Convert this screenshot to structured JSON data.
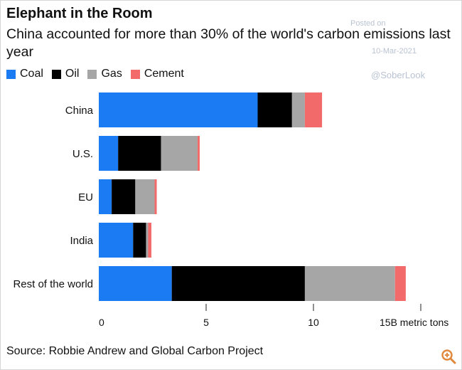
{
  "header": {
    "title": "Elephant in the Room",
    "subtitle": "China accounted for more than 30% of the world's carbon emissions last year"
  },
  "watermark": {
    "posted": "Posted on",
    "date": "10-Mar-2021",
    "handle": "@SoberLook"
  },
  "footer": {
    "source": "Source: Robbie Andrew and Global Carbon Project"
  },
  "icons": {
    "zoom": "zoom-in-icon"
  },
  "chart_data": {
    "type": "bar",
    "orientation": "horizontal",
    "stacked": true,
    "categories": [
      "China",
      "U.S.",
      "EU",
      "India",
      "Rest of the world"
    ],
    "series": [
      {
        "name": "Coal",
        "color": "#1a7bf2",
        "values": [
          7.4,
          0.9,
          0.6,
          1.6,
          3.4
        ]
      },
      {
        "name": "Oil",
        "color": "#000000",
        "values": [
          1.6,
          2.0,
          1.1,
          0.6,
          6.2
        ]
      },
      {
        "name": "Gas",
        "color": "#a6a6a6",
        "values": [
          0.6,
          1.7,
          0.9,
          0.1,
          4.2
        ]
      },
      {
        "name": "Cement",
        "color": "#f36a6a",
        "values": [
          0.8,
          0.1,
          0.1,
          0.15,
          0.5
        ]
      }
    ],
    "x_ticks": [
      {
        "value": 0,
        "label": "0"
      },
      {
        "value": 5,
        "label": "5"
      },
      {
        "value": 10,
        "label": "10"
      },
      {
        "value": 15,
        "label": "15B metric tons"
      }
    ],
    "xlim": [
      0,
      15
    ],
    "grid": false,
    "legend_position": "top-left"
  }
}
